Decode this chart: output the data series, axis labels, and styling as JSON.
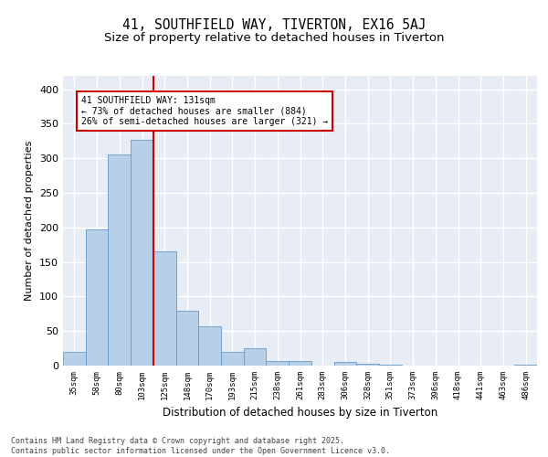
{
  "title1": "41, SOUTHFIELD WAY, TIVERTON, EX16 5AJ",
  "title2": "Size of property relative to detached houses in Tiverton",
  "xlabel": "Distribution of detached houses by size in Tiverton",
  "ylabel": "Number of detached properties",
  "bar_labels": [
    "35sqm",
    "58sqm",
    "80sqm",
    "103sqm",
    "125sqm",
    "148sqm",
    "170sqm",
    "193sqm",
    "215sqm",
    "238sqm",
    "261sqm",
    "283sqm",
    "306sqm",
    "328sqm",
    "351sqm",
    "373sqm",
    "396sqm",
    "418sqm",
    "441sqm",
    "463sqm",
    "486sqm"
  ],
  "bar_values": [
    20,
    197,
    305,
    327,
    165,
    80,
    57,
    20,
    25,
    7,
    7,
    0,
    5,
    3,
    1,
    0,
    0,
    0,
    0,
    0,
    1
  ],
  "bar_color": "#b8cfe8",
  "bar_edge_color": "#6699cc",
  "background_color": "#e8ecf5",
  "grid_color": "#ffffff",
  "annotation_text": "41 SOUTHFIELD WAY: 131sqm\n← 73% of detached houses are smaller (884)\n26% of semi-detached houses are larger (321) →",
  "vline_x": 3.5,
  "vline_color": "#cc0000",
  "annotation_box_color": "#cc0000",
  "footer_text": "Contains HM Land Registry data © Crown copyright and database right 2025.\nContains public sector information licensed under the Open Government Licence v3.0.",
  "ylim": [
    0,
    420
  ],
  "title1_fontsize": 10.5,
  "title2_fontsize": 9.5
}
